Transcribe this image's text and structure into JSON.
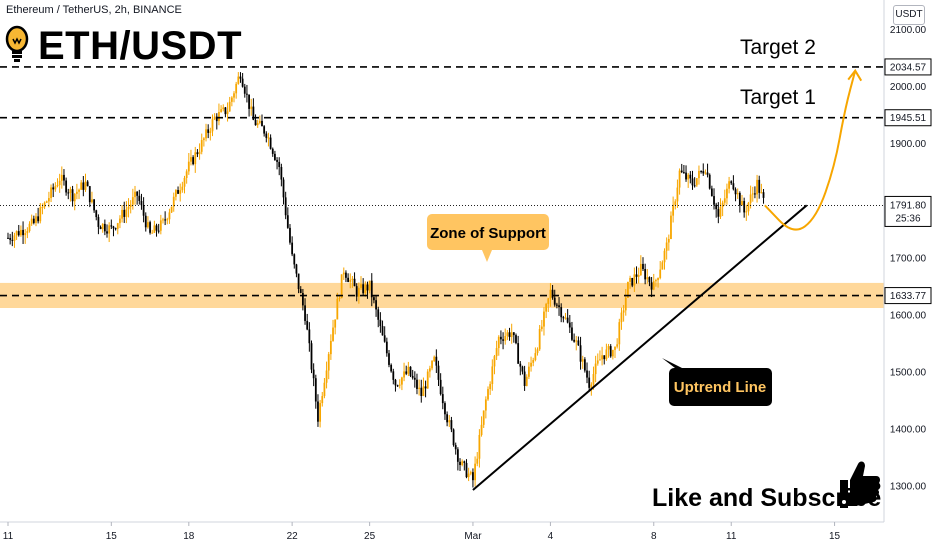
{
  "header": {
    "symbol_line": "Ethereum / TetherUS, 2h, BINANCE",
    "title": "ETH/USDT",
    "unit": "USDT"
  },
  "icons": {
    "title_icon": "lightbulb-icon",
    "like_icon": "thumbs-up-icon"
  },
  "colors": {
    "up_candle": "#f7a600",
    "down_candle": "#000000",
    "support_zone": "#ffd89a",
    "curve": "#f7a600",
    "line": "#000000"
  },
  "chart_data": {
    "type": "candlestick",
    "title": "ETH/USDT",
    "interval": "2h",
    "exchange": "BINANCE",
    "ylim": [
      1250,
      2150
    ],
    "y_ticks": [
      1300,
      1400,
      1500,
      1600,
      1700,
      1800,
      1900,
      2000,
      2100
    ],
    "y_tick_labels": [
      "1300.00",
      "1400.00",
      "1500.00",
      "1600.00",
      "1700.00",
      "1800.00",
      "1900.00",
      "2000.00",
      "2100.00"
    ],
    "x_ticks": [
      "11",
      "15",
      "18",
      "22",
      "25",
      "Mar",
      "4",
      "8",
      "11",
      "15"
    ],
    "price_series": [
      {
        "d": 0,
        "p": 1735
      },
      {
        "d": 1,
        "p": 1760
      },
      {
        "d": 2,
        "p": 1840
      },
      {
        "d": 2.5,
        "p": 1810
      },
      {
        "d": 3,
        "p": 1830
      },
      {
        "d": 3.5,
        "p": 1760
      },
      {
        "d": 4,
        "p": 1750
      },
      {
        "d": 5,
        "p": 1810
      },
      {
        "d": 5.5,
        "p": 1740
      },
      {
        "d": 6,
        "p": 1760
      },
      {
        "d": 7,
        "p": 1860
      },
      {
        "d": 7.5,
        "p": 1900
      },
      {
        "d": 8,
        "p": 1945
      },
      {
        "d": 8.5,
        "p": 1960
      },
      {
        "d": 9,
        "p": 2025
      },
      {
        "d": 9.5,
        "p": 1940
      },
      {
        "d": 10,
        "p": 1920
      },
      {
        "d": 10.5,
        "p": 1860
      },
      {
        "d": 11,
        "p": 1700
      },
      {
        "d": 11.5,
        "p": 1600
      },
      {
        "d": 12,
        "p": 1420
      },
      {
        "d": 12.5,
        "p": 1560
      },
      {
        "d": 13,
        "p": 1680
      },
      {
        "d": 13.5,
        "p": 1640
      },
      {
        "d": 14,
        "p": 1650
      },
      {
        "d": 14.5,
        "p": 1560
      },
      {
        "d": 15,
        "p": 1480
      },
      {
        "d": 15.5,
        "p": 1500
      },
      {
        "d": 16,
        "p": 1460
      },
      {
        "d": 16.5,
        "p": 1520
      },
      {
        "d": 17,
        "p": 1420
      },
      {
        "d": 17.5,
        "p": 1340
      },
      {
        "d": 18,
        "p": 1310
      },
      {
        "d": 18.5,
        "p": 1450
      },
      {
        "d": 19,
        "p": 1560
      },
      {
        "d": 19.5,
        "p": 1570
      },
      {
        "d": 20,
        "p": 1480
      },
      {
        "d": 20.5,
        "p": 1550
      },
      {
        "d": 21,
        "p": 1640
      },
      {
        "d": 21.5,
        "p": 1600
      },
      {
        "d": 22,
        "p": 1550
      },
      {
        "d": 22.5,
        "p": 1480
      },
      {
        "d": 23,
        "p": 1530
      },
      {
        "d": 23.5,
        "p": 1540
      },
      {
        "d": 24,
        "p": 1650
      },
      {
        "d": 24.5,
        "p": 1680
      },
      {
        "d": 25,
        "p": 1650
      },
      {
        "d": 25.5,
        "p": 1720
      },
      {
        "d": 26,
        "p": 1850
      },
      {
        "d": 26.5,
        "p": 1830
      },
      {
        "d": 27,
        "p": 1860
      },
      {
        "d": 27.5,
        "p": 1770
      },
      {
        "d": 28,
        "p": 1840
      },
      {
        "d": 28.5,
        "p": 1780
      },
      {
        "d": 29,
        "p": 1830
      },
      {
        "d": 29.3,
        "p": 1792
      }
    ],
    "horizontal_levels": [
      {
        "name": "Target 2",
        "price": 2034.57,
        "label": "2034.57"
      },
      {
        "name": "Target 1",
        "price": 1945.51,
        "label": "1945.51"
      },
      {
        "name": "Support",
        "price": 1633.77,
        "label": "1633.77"
      }
    ],
    "support_zone": {
      "low": 1612,
      "high": 1656
    },
    "current_price": {
      "value": 1791.8,
      "label": "1791.80",
      "countdown": "25:36"
    },
    "uptrend_line": {
      "from": {
        "d": 18,
        "p": 1293
      },
      "to": {
        "d": 31,
        "p": 1792
      }
    },
    "projection": [
      {
        "d": 29.3,
        "p": 1792
      },
      {
        "d": 30.4,
        "p": 1740
      },
      {
        "d": 31.3,
        "p": 1770
      },
      {
        "d": 32,
        "p": 1860
      },
      {
        "d": 32.4,
        "p": 1960
      },
      {
        "d": 32.8,
        "p": 2028
      }
    ],
    "annotations": {
      "target2": "Target 2",
      "target1": "Target 1",
      "support": "Zone of Support",
      "uptrend": "Uptrend Line",
      "cta": "Like and Subscribe"
    }
  }
}
